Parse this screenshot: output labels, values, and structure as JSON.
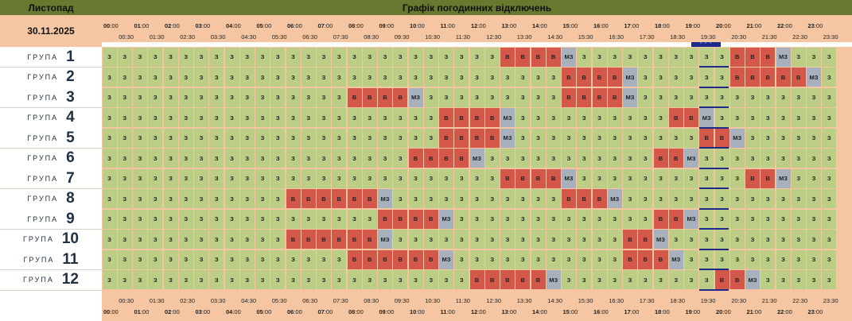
{
  "header": {
    "month": "Листопад",
    "title": "Графік погодинних відключень"
  },
  "date": "30.11.2025",
  "hours": [
    "00",
    "01",
    "02",
    "03",
    "04",
    "05",
    "06",
    "07",
    "08",
    "09",
    "10",
    "11",
    "12",
    "13",
    "14",
    "15",
    "16",
    "17",
    "18",
    "19",
    "20",
    "21",
    "22",
    "23"
  ],
  "hour_suffix": ":00",
  "halfs": [
    "00:30",
    "01:30",
    "02:30",
    "03:30",
    "04:30",
    "05:30",
    "06:30",
    "07:30",
    "08:30",
    "09:30",
    "10:30",
    "11:30",
    "12:30",
    "13:30",
    "14:30",
    "15:30",
    "16:30",
    "17:30",
    "18:30",
    "19:30",
    "20:30",
    "21:30",
    "22:30",
    "23:30"
  ],
  "group_word": "ГРУПА",
  "groups": [
    {
      "num": "1",
      "slots": "zzzzzzzzzzzzzzzzzzzzzzzzzzvvvvmzzzzzzzzzzvvvmzzz"
    },
    {
      "num": "2",
      "slots": "zzzzzzzzzzzzzzzzzzzzzzzzzzzzzzvvvvmzzzzzzvvvvvmz"
    },
    {
      "num": "3",
      "slots": "zzzzzzzzzzzzzzzzvvvvmzzzzzzzzzvvvvmzzzzzzzzzzzzz"
    },
    {
      "num": "4",
      "slots": "zzzzzzzzzzzzzzzzzzzzzzvvvvmzzzzzzzzzzvvmzzzzzzzz"
    },
    {
      "num": "5",
      "slots": "zzzzzzzzzzzzzzzzzzzzzzvvvvmzzzzzzzzzzzzvvmzzzzzz"
    },
    {
      "num": "6",
      "slots": "zzzzzzzzzzzzzzzzzzzzvvvvmzzzzzzzzzzzvvmzzzzzzzzz"
    },
    {
      "num": "7",
      "slots": "zzzzzzzzzzzzzzzzzzzzzzzzzzvvvvmzzzzzzzzzzzvvmzzz"
    },
    {
      "num": "8",
      "slots": "zzzzzzzzzzzzvvvvvvmzzzzzzzzzzzvvvmzzzzzzzzzzzzzz"
    },
    {
      "num": "9",
      "slots": "zzzzzzzzzzzzzzzzzzvvvvmzzzzzzzzzzzzzvvmzzzzzzzzz"
    },
    {
      "num": "10",
      "slots": "zzzzzzzzzzzzvvvvvvmzzzzzzzzzzzzzzzvvmzzzzzzzzzzz"
    },
    {
      "num": "11",
      "slots": "zzzzzzzzzzzzzzzzvvvvvvmzzzzzzzzzzzvvvmzzzzzzzzzz"
    },
    {
      "num": "12",
      "slots": "zzzzzzzzzzzzzzzzzzzzzzzzvvvvvmzzzzzzzzzzvvmzzzzz"
    }
  ],
  "status_labels": {
    "z": "З",
    "v": "В",
    "m": "МЗ"
  },
  "now_marker": "* * *",
  "colors": {
    "on": "#bccd86",
    "off": "#d4584a",
    "maybe": "#a7b1bd",
    "header": "#66792e",
    "band": "#f5c6a1",
    "current": "#1d2a8a"
  }
}
